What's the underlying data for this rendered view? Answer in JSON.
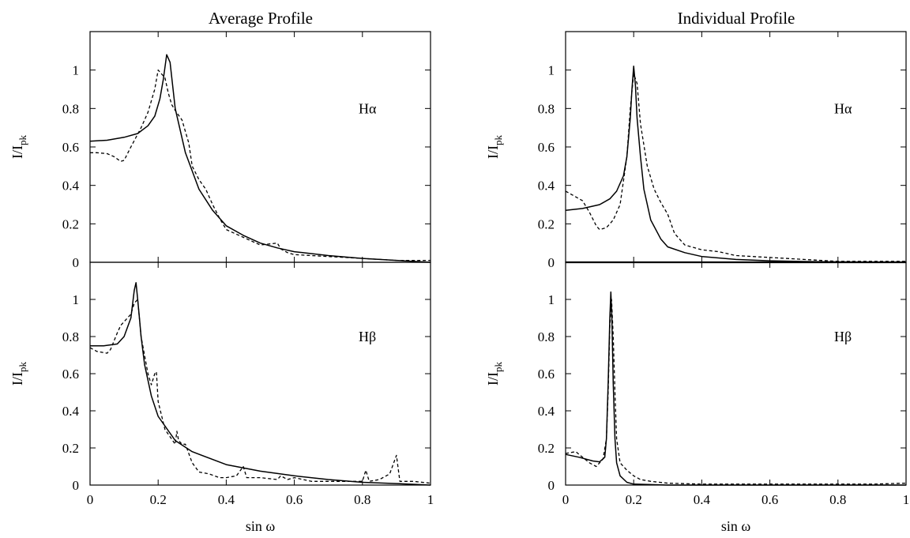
{
  "titles": {
    "left": "Average Profile",
    "right": "Individual Profile"
  },
  "ylabel_main": "I/I",
  "ylabel_sub": "pk",
  "xlabel": "sin ω",
  "chart_data": [
    {
      "panel": "average-halpha",
      "type": "line",
      "annotation": "Hα",
      "xlim": [
        0,
        1
      ],
      "ylim": [
        0,
        1.2
      ],
      "yticks": [
        "0",
        "0.2",
        "0.4",
        "0.6",
        "0.8",
        "1"
      ],
      "xticks": [],
      "series": [
        {
          "style": "solid",
          "x": [
            0,
            0.05,
            0.1,
            0.14,
            0.17,
            0.19,
            0.205,
            0.215,
            0.225,
            0.235,
            0.25,
            0.28,
            0.32,
            0.36,
            0.4,
            0.45,
            0.5,
            0.55,
            0.6,
            0.7,
            0.8,
            0.9,
            1.0
          ],
          "y": [
            0.63,
            0.635,
            0.65,
            0.67,
            0.71,
            0.76,
            0.85,
            0.95,
            1.08,
            1.04,
            0.8,
            0.57,
            0.38,
            0.27,
            0.19,
            0.14,
            0.1,
            0.075,
            0.055,
            0.035,
            0.02,
            0.01,
            0.0
          ]
        },
        {
          "style": "dashed",
          "x": [
            0,
            0.02,
            0.05,
            0.07,
            0.09,
            0.1,
            0.12,
            0.15,
            0.17,
            0.19,
            0.2,
            0.22,
            0.23,
            0.24,
            0.25,
            0.27,
            0.29,
            0.3,
            0.32,
            0.34,
            0.36,
            0.38,
            0.4,
            0.45,
            0.5,
            0.55,
            0.56,
            0.58,
            0.6,
            0.65,
            0.7,
            0.8,
            0.9,
            1.0
          ],
          "y": [
            0.57,
            0.57,
            0.565,
            0.55,
            0.525,
            0.53,
            0.6,
            0.7,
            0.78,
            0.9,
            1.0,
            0.96,
            0.88,
            0.82,
            0.79,
            0.74,
            0.62,
            0.5,
            0.43,
            0.38,
            0.3,
            0.23,
            0.17,
            0.13,
            0.09,
            0.1,
            0.07,
            0.05,
            0.04,
            0.035,
            0.03,
            0.02,
            0.01,
            0.01
          ]
        }
      ]
    },
    {
      "panel": "average-hbeta",
      "type": "line",
      "annotation": "Hβ",
      "xlim": [
        0,
        1
      ],
      "ylim": [
        0,
        1.2
      ],
      "yticks": [
        "0",
        "0.2",
        "0.4",
        "0.6",
        "0.8",
        "1"
      ],
      "xticks": [
        "0",
        "0.2",
        "0.4",
        "0.6",
        "0.8",
        "1"
      ],
      "series": [
        {
          "style": "solid",
          "x": [
            0,
            0.04,
            0.08,
            0.1,
            0.12,
            0.13,
            0.135,
            0.14,
            0.145,
            0.15,
            0.16,
            0.18,
            0.2,
            0.25,
            0.3,
            0.4,
            0.5,
            0.6,
            0.7,
            0.8,
            0.9,
            1.0
          ],
          "y": [
            0.75,
            0.75,
            0.76,
            0.8,
            0.9,
            1.05,
            1.09,
            1.0,
            0.9,
            0.8,
            0.65,
            0.48,
            0.37,
            0.24,
            0.18,
            0.11,
            0.075,
            0.05,
            0.03,
            0.015,
            0.008,
            0.0
          ]
        },
        {
          "style": "dashed",
          "x": [
            0,
            0.02,
            0.05,
            0.06,
            0.08,
            0.09,
            0.1,
            0.12,
            0.13,
            0.14,
            0.15,
            0.17,
            0.18,
            0.19,
            0.195,
            0.2,
            0.22,
            0.25,
            0.255,
            0.26,
            0.27,
            0.28,
            0.3,
            0.32,
            0.35,
            0.38,
            0.4,
            0.43,
            0.45,
            0.46,
            0.5,
            0.55,
            0.56,
            0.58,
            0.6,
            0.65,
            0.7,
            0.75,
            0.8,
            0.81,
            0.82,
            0.85,
            0.88,
            0.9,
            0.91,
            0.92,
            0.95,
            1.0
          ],
          "y": [
            0.74,
            0.72,
            0.71,
            0.73,
            0.82,
            0.86,
            0.88,
            0.92,
            0.98,
            1.0,
            0.8,
            0.6,
            0.54,
            0.6,
            0.61,
            0.45,
            0.3,
            0.22,
            0.29,
            0.24,
            0.22,
            0.22,
            0.12,
            0.07,
            0.06,
            0.04,
            0.04,
            0.05,
            0.1,
            0.04,
            0.04,
            0.03,
            0.05,
            0.03,
            0.04,
            0.02,
            0.02,
            0.02,
            0.02,
            0.08,
            0.02,
            0.03,
            0.06,
            0.16,
            0.02,
            0.02,
            0.02,
            0.01
          ]
        }
      ]
    },
    {
      "panel": "individual-halpha",
      "type": "line",
      "annotation": "Hα",
      "xlim": [
        0,
        1
      ],
      "ylim": [
        0,
        1.2
      ],
      "yticks": [
        "0",
        "0.2",
        "0.4",
        "0.6",
        "0.8",
        "1"
      ],
      "xticks": [],
      "series": [
        {
          "style": "solid",
          "x": [
            0,
            0.05,
            0.1,
            0.13,
            0.15,
            0.17,
            0.18,
            0.19,
            0.195,
            0.2,
            0.205,
            0.21,
            0.22,
            0.23,
            0.25,
            0.28,
            0.3,
            0.35,
            0.4,
            0.5,
            0.6,
            0.7,
            0.8,
            1.0
          ],
          "y": [
            0.27,
            0.28,
            0.3,
            0.33,
            0.37,
            0.45,
            0.55,
            0.75,
            0.9,
            1.02,
            0.92,
            0.75,
            0.55,
            0.38,
            0.22,
            0.12,
            0.08,
            0.05,
            0.03,
            0.015,
            0.008,
            0.004,
            0.002,
            0.0
          ]
        },
        {
          "style": "dashed",
          "x": [
            0,
            0.02,
            0.05,
            0.07,
            0.09,
            0.1,
            0.12,
            0.14,
            0.16,
            0.18,
            0.19,
            0.2,
            0.21,
            0.22,
            0.24,
            0.26,
            0.28,
            0.3,
            0.32,
            0.35,
            0.4,
            0.45,
            0.5,
            0.55,
            0.6,
            0.7,
            0.8,
            0.9,
            1.0
          ],
          "y": [
            0.37,
            0.35,
            0.32,
            0.26,
            0.19,
            0.17,
            0.18,
            0.22,
            0.3,
            0.55,
            0.8,
            0.98,
            0.93,
            0.72,
            0.5,
            0.38,
            0.31,
            0.25,
            0.15,
            0.09,
            0.065,
            0.055,
            0.035,
            0.03,
            0.025,
            0.015,
            0.005,
            0.005,
            0.005
          ]
        }
      ]
    },
    {
      "panel": "individual-hbeta",
      "type": "line",
      "annotation": "Hβ",
      "xlim": [
        0,
        1
      ],
      "ylim": [
        0,
        1.2
      ],
      "yticks": [
        "0",
        "0.2",
        "0.4",
        "0.6",
        "0.8",
        "1"
      ],
      "xticks": [
        "0",
        "0.2",
        "0.4",
        "0.6",
        "0.8",
        "1"
      ],
      "series": [
        {
          "style": "solid",
          "x": [
            0,
            0.04,
            0.08,
            0.1,
            0.115,
            0.12,
            0.125,
            0.13,
            0.133,
            0.136,
            0.14,
            0.145,
            0.15,
            0.16,
            0.18,
            0.2,
            0.3,
            0.5,
            1.0
          ],
          "y": [
            0.165,
            0.15,
            0.13,
            0.125,
            0.15,
            0.25,
            0.55,
            0.9,
            1.04,
            0.9,
            0.55,
            0.25,
            0.12,
            0.05,
            0.015,
            0.005,
            0.0,
            0.0,
            0.0
          ]
        },
        {
          "style": "dashed",
          "x": [
            0,
            0.03,
            0.05,
            0.07,
            0.09,
            0.1,
            0.11,
            0.12,
            0.125,
            0.13,
            0.135,
            0.14,
            0.145,
            0.15,
            0.16,
            0.18,
            0.2,
            0.22,
            0.25,
            0.3,
            0.4,
            0.5,
            0.6,
            0.7,
            0.8,
            0.9,
            1.0
          ],
          "y": [
            0.17,
            0.18,
            0.15,
            0.12,
            0.1,
            0.12,
            0.14,
            0.25,
            0.5,
            0.85,
            1.0,
            0.8,
            0.5,
            0.25,
            0.12,
            0.08,
            0.05,
            0.03,
            0.02,
            0.01,
            0.005,
            0.005,
            0.005,
            0.005,
            0.005,
            0.005,
            0.01
          ]
        }
      ]
    }
  ]
}
